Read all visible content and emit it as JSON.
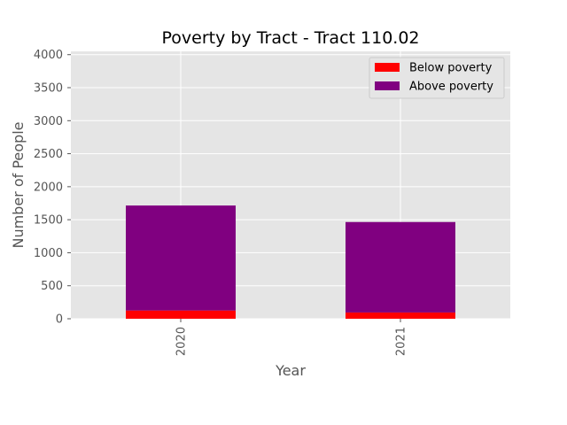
{
  "chart_data": {
    "type": "bar",
    "stacked": true,
    "title": "Poverty by Tract - Tract 110.02",
    "xlabel": "Year",
    "ylabel": "Number of People",
    "categories": [
      "2020",
      "2021"
    ],
    "series": [
      {
        "name": "Below poverty",
        "values": [
          125,
          95
        ],
        "color": "#ff0000"
      },
      {
        "name": "Above poverty",
        "values": [
          1590,
          1370
        ],
        "color": "#800080"
      }
    ],
    "ylim": [
      0,
      4050
    ],
    "yticks": [
      0,
      500,
      1000,
      1500,
      2000,
      2500,
      3000,
      3500,
      4000
    ],
    "grid": true,
    "legend_position": "top-right",
    "background": "#e5e5e5"
  }
}
